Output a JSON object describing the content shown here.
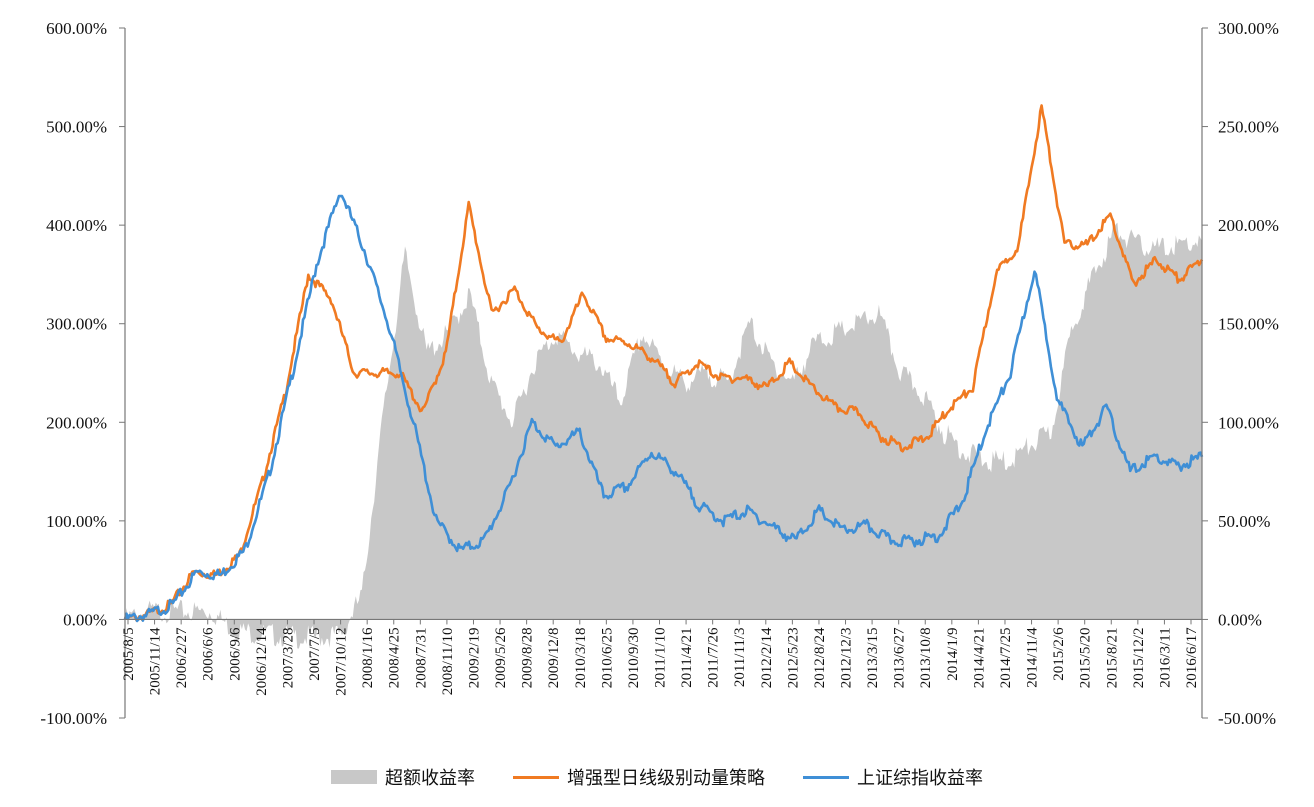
{
  "chart_data": {
    "type": "line",
    "title": "",
    "left_axis": {
      "ticks": [
        "600.00%",
        "500.00%",
        "400.00%",
        "300.00%",
        "200.00%",
        "100.00%",
        "0.00%",
        "-100.00%"
      ],
      "range": [
        -100,
        600
      ]
    },
    "right_axis": {
      "ticks": [
        "300.00%",
        "250.00%",
        "200.00%",
        "150.00%",
        "100.00%",
        "50.00%",
        "0.00%",
        "-50.00%"
      ],
      "range": [
        -50,
        300
      ]
    },
    "x_ticks": [
      "2005/8/5",
      "2005/11/14",
      "2006/2/27",
      "2006/6/6",
      "2006/9/6",
      "2006/12/14",
      "2007/3/28",
      "2007/7/5",
      "2007/10/12",
      "2008/1/16",
      "2008/4/25",
      "2008/7/31",
      "2008/11/10",
      "2009/2/19",
      "2009/5/26",
      "2009/8/28",
      "2009/12/8",
      "2010/3/18",
      "2010/6/25",
      "2010/9/30",
      "2011/1/10",
      "2011/4/21",
      "2011/7/26",
      "2011/11/3",
      "2012/2/14",
      "2012/5/23",
      "2012/8/24",
      "2012/12/3",
      "2013/3/15",
      "2013/6/27",
      "2013/10/8",
      "2014/1/9",
      "2014/4/21",
      "2014/7/25",
      "2014/11/4",
      "2015/2/6",
      "2015/5/20",
      "2015/8/21",
      "2015/12/2",
      "2016/3/11",
      "2016/6/17"
    ],
    "grid": false,
    "legend_position": "bottom",
    "series": [
      {
        "name": "超额收益率",
        "kind": "area",
        "axis": "right",
        "color": "#c8c8c8",
        "values": [
          0,
          4,
          4,
          4,
          4,
          -5,
          -7,
          -8,
          -9,
          -9,
          -8,
          12,
          105,
          185,
          135,
          145,
          165,
          120,
          100,
          130,
          145,
          135,
          130,
          110,
          145,
          130,
          120,
          125,
          120,
          150,
          130,
          120,
          140,
          145,
          150,
          155,
          125,
          115,
          95,
          85,
          80,
          80,
          88,
          95,
          150,
          175,
          198,
          190,
          188,
          190,
          192
        ]
      },
      {
        "name": "增强型日线级别动量策略",
        "kind": "line",
        "axis": "left",
        "color": "#f07a22",
        "values": [
          0,
          5,
          15,
          48,
          45,
          65,
          140,
          230,
          350,
          325,
          250,
          250,
          250,
          210,
          270,
          420,
          310,
          335,
          295,
          280,
          330,
          285,
          280,
          265,
          240,
          260,
          245,
          245,
          235,
          260,
          235,
          215,
          210,
          185,
          175,
          185,
          215,
          235,
          350,
          380,
          520,
          380,
          380,
          410,
          340,
          365,
          345,
          365
        ]
      },
      {
        "name": "上证综指收益率",
        "kind": "line",
        "axis": "left",
        "color": "#3f8fd6",
        "values": [
          0,
          5,
          15,
          48,
          45,
          70,
          145,
          250,
          360,
          435,
          375,
          300,
          205,
          100,
          70,
          80,
          130,
          200,
          175,
          190,
          125,
          135,
          170,
          150,
          115,
          100,
          110,
          95,
          80,
          110,
          90,
          95,
          80,
          80,
          85,
          120,
          195,
          250,
          355,
          220,
          175,
          215,
          150,
          165,
          155,
          165
        ]
      }
    ]
  }
}
